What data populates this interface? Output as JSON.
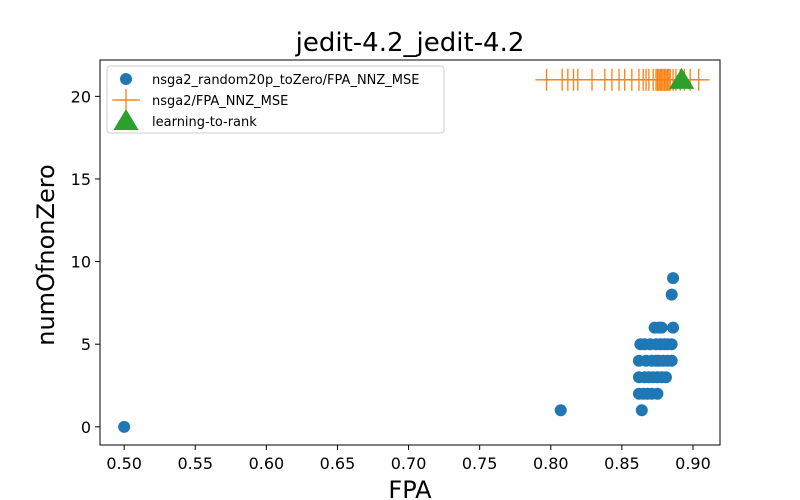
{
  "chart_data": {
    "type": "scatter",
    "title": "jedit-4.2_jedit-4.2",
    "xlabel": "FPA",
    "ylabel": "numOfnonZero",
    "xlim": [
      0.483,
      0.919
    ],
    "ylim": [
      -1.1,
      22.2
    ],
    "xticks": [
      "0.50",
      "0.55",
      "0.60",
      "0.65",
      "0.70",
      "0.75",
      "0.80",
      "0.85",
      "0.90"
    ],
    "yticks": [
      "0",
      "5",
      "10",
      "15",
      "20"
    ],
    "legend_position": "top-left",
    "series": [
      {
        "name": "nsga2_random20p_toZero/FPA_NNZ_MSE",
        "marker": "circle",
        "color": "#1f77b4",
        "points": [
          [
            0.5,
            0
          ],
          [
            0.807,
            1
          ],
          [
            0.864,
            1
          ],
          [
            0.862,
            2
          ],
          [
            0.865,
            2
          ],
          [
            0.868,
            2
          ],
          [
            0.871,
            2
          ],
          [
            0.875,
            2
          ],
          [
            0.862,
            3
          ],
          [
            0.866,
            3
          ],
          [
            0.869,
            3
          ],
          [
            0.872,
            3
          ],
          [
            0.875,
            3
          ],
          [
            0.878,
            3
          ],
          [
            0.881,
            3
          ],
          [
            0.862,
            4
          ],
          [
            0.867,
            4
          ],
          [
            0.871,
            4
          ],
          [
            0.874,
            4
          ],
          [
            0.876,
            4
          ],
          [
            0.879,
            4
          ],
          [
            0.882,
            4
          ],
          [
            0.885,
            4
          ],
          [
            0.863,
            5
          ],
          [
            0.866,
            5
          ],
          [
            0.87,
            5
          ],
          [
            0.874,
            5
          ],
          [
            0.877,
            5
          ],
          [
            0.88,
            5
          ],
          [
            0.882,
            5
          ],
          [
            0.885,
            5
          ],
          [
            0.873,
            6
          ],
          [
            0.876,
            6
          ],
          [
            0.878,
            6
          ],
          [
            0.886,
            6
          ],
          [
            0.885,
            8
          ],
          [
            0.886,
            9
          ]
        ]
      },
      {
        "name": "nsga2/FPA_NNZ_MSE",
        "marker": "plus",
        "color": "#ff7f0e",
        "connected": true,
        "points": [
          [
            0.797,
            21
          ],
          [
            0.808,
            21
          ],
          [
            0.812,
            21
          ],
          [
            0.816,
            21
          ],
          [
            0.819,
            21
          ],
          [
            0.829,
            21
          ],
          [
            0.838,
            21
          ],
          [
            0.843,
            21
          ],
          [
            0.848,
            21
          ],
          [
            0.852,
            21
          ],
          [
            0.857,
            21
          ],
          [
            0.862,
            21
          ],
          [
            0.865,
            21
          ],
          [
            0.867,
            21
          ],
          [
            0.869,
            21
          ],
          [
            0.872,
            21
          ],
          [
            0.874,
            21
          ],
          [
            0.875,
            21
          ],
          [
            0.876,
            21
          ],
          [
            0.877,
            21
          ],
          [
            0.878,
            21
          ],
          [
            0.879,
            21
          ],
          [
            0.88,
            21
          ],
          [
            0.881,
            21
          ],
          [
            0.882,
            21
          ],
          [
            0.883,
            21
          ],
          [
            0.884,
            21
          ],
          [
            0.886,
            21
          ],
          [
            0.888,
            21
          ],
          [
            0.891,
            21
          ],
          [
            0.894,
            21
          ],
          [
            0.898,
            21
          ],
          [
            0.904,
            21
          ]
        ]
      },
      {
        "name": "learning-to-rank",
        "marker": "triangle",
        "color": "#2ca02c",
        "points": [
          [
            0.892,
            21
          ]
        ]
      }
    ]
  }
}
